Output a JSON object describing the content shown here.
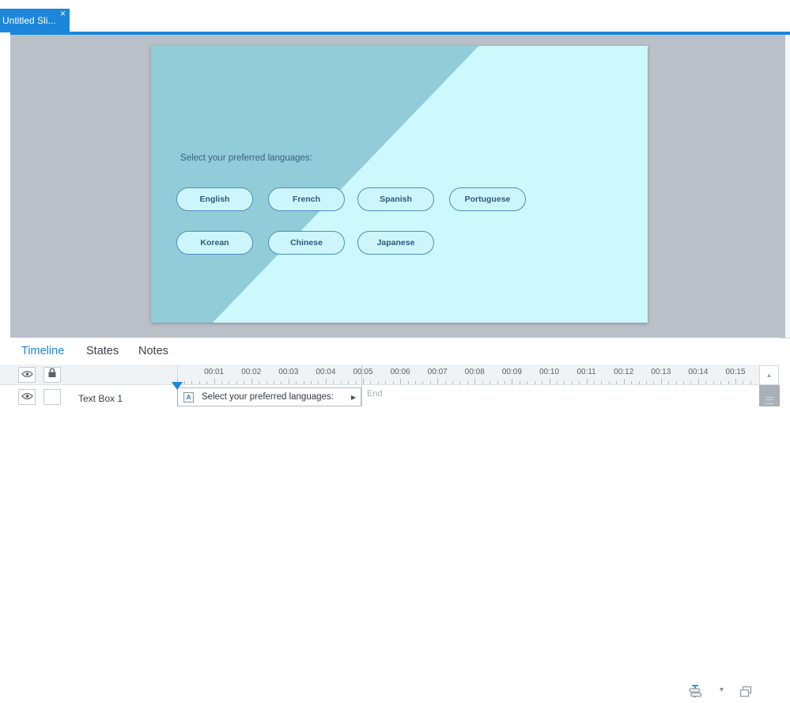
{
  "tab": {
    "title": "Untitled Sli...",
    "close_glyph": "×"
  },
  "slide": {
    "prompt": "Select your preferred languages:",
    "language_buttons": [
      [
        "English",
        "French",
        "Spanish",
        "Portuguese"
      ],
      [
        "Korean",
        "Chinese",
        "Japanese"
      ]
    ]
  },
  "panel": {
    "tabs": [
      {
        "label": "Timeline",
        "active": true
      },
      {
        "label": "States",
        "active": false
      },
      {
        "label": "Notes",
        "active": false
      }
    ],
    "ruler": {
      "labels": [
        "00:01",
        "00:02",
        "00:03",
        "00:04",
        "00:05",
        "00:06",
        "00:07",
        "00:08",
        "00:09",
        "00:10",
        "00:11",
        "00:12",
        "00:13",
        "00:14",
        "00:15"
      ]
    },
    "icons": {
      "caret_glyph": "▾",
      "scroll_up_glyph": "▲"
    },
    "track": {
      "name": "Text Box 1",
      "object_label": "Select your preferred languages:",
      "play_glyph": "▶",
      "textbox_icon_glyph": "A",
      "end_label": "End"
    }
  },
  "colors": {
    "accent_blue": "#1c87da",
    "workspace_gray": "#b9c0c8",
    "slide_dark": "#92ccd9",
    "slide_light": "#cdf9fd",
    "button_border": "#4d8cc0",
    "button_fill": "#cdf6fc",
    "button_text": "#2a5c7c"
  }
}
